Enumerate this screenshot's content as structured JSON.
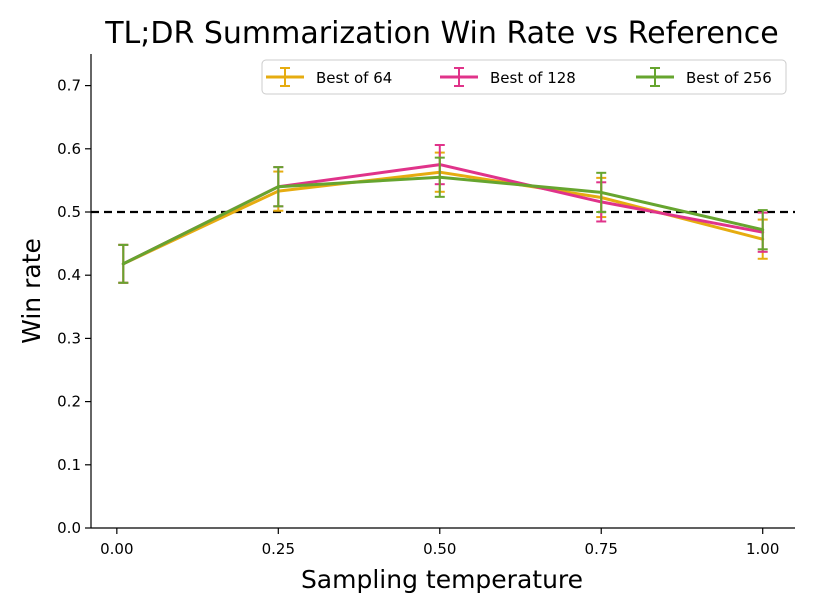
{
  "chart_data": {
    "type": "line",
    "title": "TL;DR Summarization Win Rate vs Reference",
    "xlabel": "Sampling temperature",
    "ylabel": "Win rate",
    "x": [
      0.01,
      0.25,
      0.5,
      0.75,
      1.0
    ],
    "x_ticks": [
      0.0,
      0.25,
      0.5,
      0.75,
      1.0
    ],
    "x_tick_labels": [
      "0.00",
      "0.25",
      "0.50",
      "0.75",
      "1.00"
    ],
    "xlim": [
      -0.04,
      1.05
    ],
    "y_ticks": [
      0.0,
      0.1,
      0.2,
      0.3,
      0.4,
      0.5,
      0.6,
      0.7
    ],
    "y_tick_labels": [
      "0.0",
      "0.1",
      "0.2",
      "0.3",
      "0.4",
      "0.5",
      "0.6",
      "0.7"
    ],
    "ylim": [
      0.0,
      0.75
    ],
    "grid": false,
    "legend_position": "top-right",
    "reference_line": {
      "y": 0.5,
      "style": "dashed",
      "color": "#000000"
    },
    "series": [
      {
        "name": "Best of 64",
        "color": "#E6AC10",
        "values": [
          0.418,
          0.533,
          0.563,
          0.523,
          0.457
        ],
        "errors": [
          0.03,
          0.031,
          0.031,
          0.031,
          0.031
        ]
      },
      {
        "name": "Best of 128",
        "color": "#E0338A",
        "values": [
          0.418,
          0.54,
          0.575,
          0.516,
          0.468
        ],
        "errors": [
          0.03,
          0.031,
          0.031,
          0.031,
          0.031
        ]
      },
      {
        "name": "Best of 256",
        "color": "#66A52F",
        "values": [
          0.418,
          0.54,
          0.555,
          0.531,
          0.472
        ],
        "errors": [
          0.03,
          0.031,
          0.031,
          0.031,
          0.031
        ]
      }
    ]
  }
}
